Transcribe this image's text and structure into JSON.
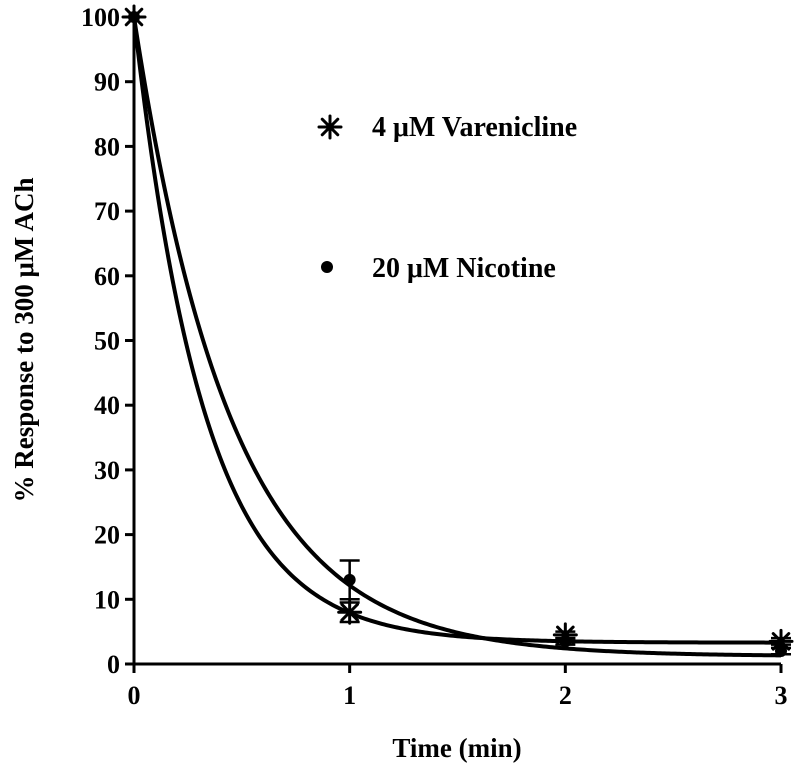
{
  "chart_data": {
    "type": "scatter",
    "xlabel": "Time (min)",
    "ylabel": "% Response to 300 μM ACh",
    "xlim": [
      0,
      3
    ],
    "ylim": [
      0,
      100
    ],
    "x_ticks": [
      "0",
      "1",
      "2",
      "3"
    ],
    "y_ticks": [
      "0",
      "10",
      "20",
      "30",
      "40",
      "50",
      "60",
      "70",
      "80",
      "90",
      "100"
    ],
    "grid": false,
    "legend_position": "upper-middle",
    "series": [
      {
        "name": "4 μM Varenicline",
        "marker": "asterisk",
        "x": [
          0,
          1,
          2,
          3
        ],
        "y": [
          100,
          8,
          4.5,
          3.5
        ],
        "error": [
          0,
          1.5,
          0.5,
          0.5
        ],
        "fit": {
          "plateau": 3.3,
          "k": 3.05
        }
      },
      {
        "name": "20 μM Nicotine",
        "marker": "dot",
        "x": [
          0,
          1,
          2,
          3
        ],
        "y": [
          100,
          13,
          3.5,
          2
        ],
        "error": [
          0,
          3,
          0.5,
          0.5
        ],
        "fit": {
          "plateau": 1.2,
          "k": 2.2
        }
      }
    ]
  }
}
